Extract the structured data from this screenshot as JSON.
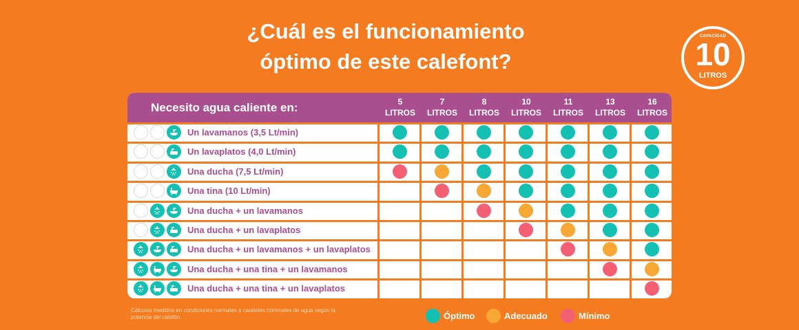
{
  "title": {
    "line1": "¿Cuál es el funcionamiento",
    "line2": "óptimo de este calefont?"
  },
  "badge": {
    "caption": "CAPACIDAD",
    "value": "10",
    "unit": "LITROS"
  },
  "table": {
    "header_label": "Necesito agua caliente en:",
    "columns": [
      {
        "num": "5",
        "unit": "LITROS"
      },
      {
        "num": "7",
        "unit": "LITROS"
      },
      {
        "num": "8",
        "unit": "LITROS"
      },
      {
        "num": "10",
        "unit": "LITROS"
      },
      {
        "num": "11",
        "unit": "LITROS"
      },
      {
        "num": "13",
        "unit": "LITROS"
      },
      {
        "num": "16",
        "unit": "LITROS"
      }
    ],
    "rows": [
      {
        "label": "Un lavamanos (3,5 Lt/min)",
        "icons": [
          "empty",
          "empty",
          "sink"
        ],
        "levels": [
          "optimo",
          "optimo",
          "optimo",
          "optimo",
          "optimo",
          "optimo",
          "optimo"
        ]
      },
      {
        "label": "Un lavaplatos (4,0 Lt/min)",
        "icons": [
          "empty",
          "empty",
          "dishes"
        ],
        "levels": [
          "optimo",
          "optimo",
          "optimo",
          "optimo",
          "optimo",
          "optimo",
          "optimo"
        ]
      },
      {
        "label": "Una ducha (7,5 Lt/min)",
        "icons": [
          "empty",
          "empty",
          "shower"
        ],
        "levels": [
          "minimo",
          "adecuado",
          "optimo",
          "optimo",
          "optimo",
          "optimo",
          "optimo"
        ]
      },
      {
        "label": "Una tina (10 Lt/min)",
        "icons": [
          "empty",
          "empty",
          "tub"
        ],
        "levels": [
          "",
          "minimo",
          "adecuado",
          "optimo",
          "optimo",
          "optimo",
          "optimo"
        ]
      },
      {
        "label": "Una ducha + un lavamanos",
        "icons": [
          "empty",
          "shower",
          "sink"
        ],
        "levels": [
          "",
          "",
          "minimo",
          "adecuado",
          "optimo",
          "optimo",
          "optimo"
        ]
      },
      {
        "label": "Una ducha + un lavaplatos",
        "icons": [
          "empty",
          "shower",
          "dishes"
        ],
        "levels": [
          "",
          "",
          "",
          "minimo",
          "adecuado",
          "optimo",
          "optimo"
        ]
      },
      {
        "label": "Una ducha + un lavamanos + un lavaplatos",
        "icons": [
          "shower",
          "sink",
          "dishes"
        ],
        "levels": [
          "",
          "",
          "",
          "",
          "minimo",
          "adecuado",
          "optimo"
        ]
      },
      {
        "label": "Una ducha + una tina + un lavamanos",
        "icons": [
          "shower",
          "tub",
          "sink"
        ],
        "levels": [
          "",
          "",
          "",
          "",
          "",
          "minimo",
          "adecuado"
        ]
      },
      {
        "label": "Una ducha + una tina + un lavaplatos",
        "icons": [
          "shower",
          "tub",
          "dishes"
        ],
        "levels": [
          "",
          "",
          "",
          "",
          "",
          "",
          "minimo"
        ]
      }
    ]
  },
  "colors": {
    "background": "#f47b20",
    "header": "#a94e8f",
    "optimo": "#13c0b2",
    "adecuado": "#f7a733",
    "minimo": "#f35f73"
  },
  "note": "Cálculos medidos en condiciones normales a caudales nominales de agua según la potencia del calefón.",
  "legend": [
    {
      "key": "optimo",
      "label": "Óptimo"
    },
    {
      "key": "adecuado",
      "label": "Adecuado"
    },
    {
      "key": "minimo",
      "label": "Mínimo"
    }
  ]
}
